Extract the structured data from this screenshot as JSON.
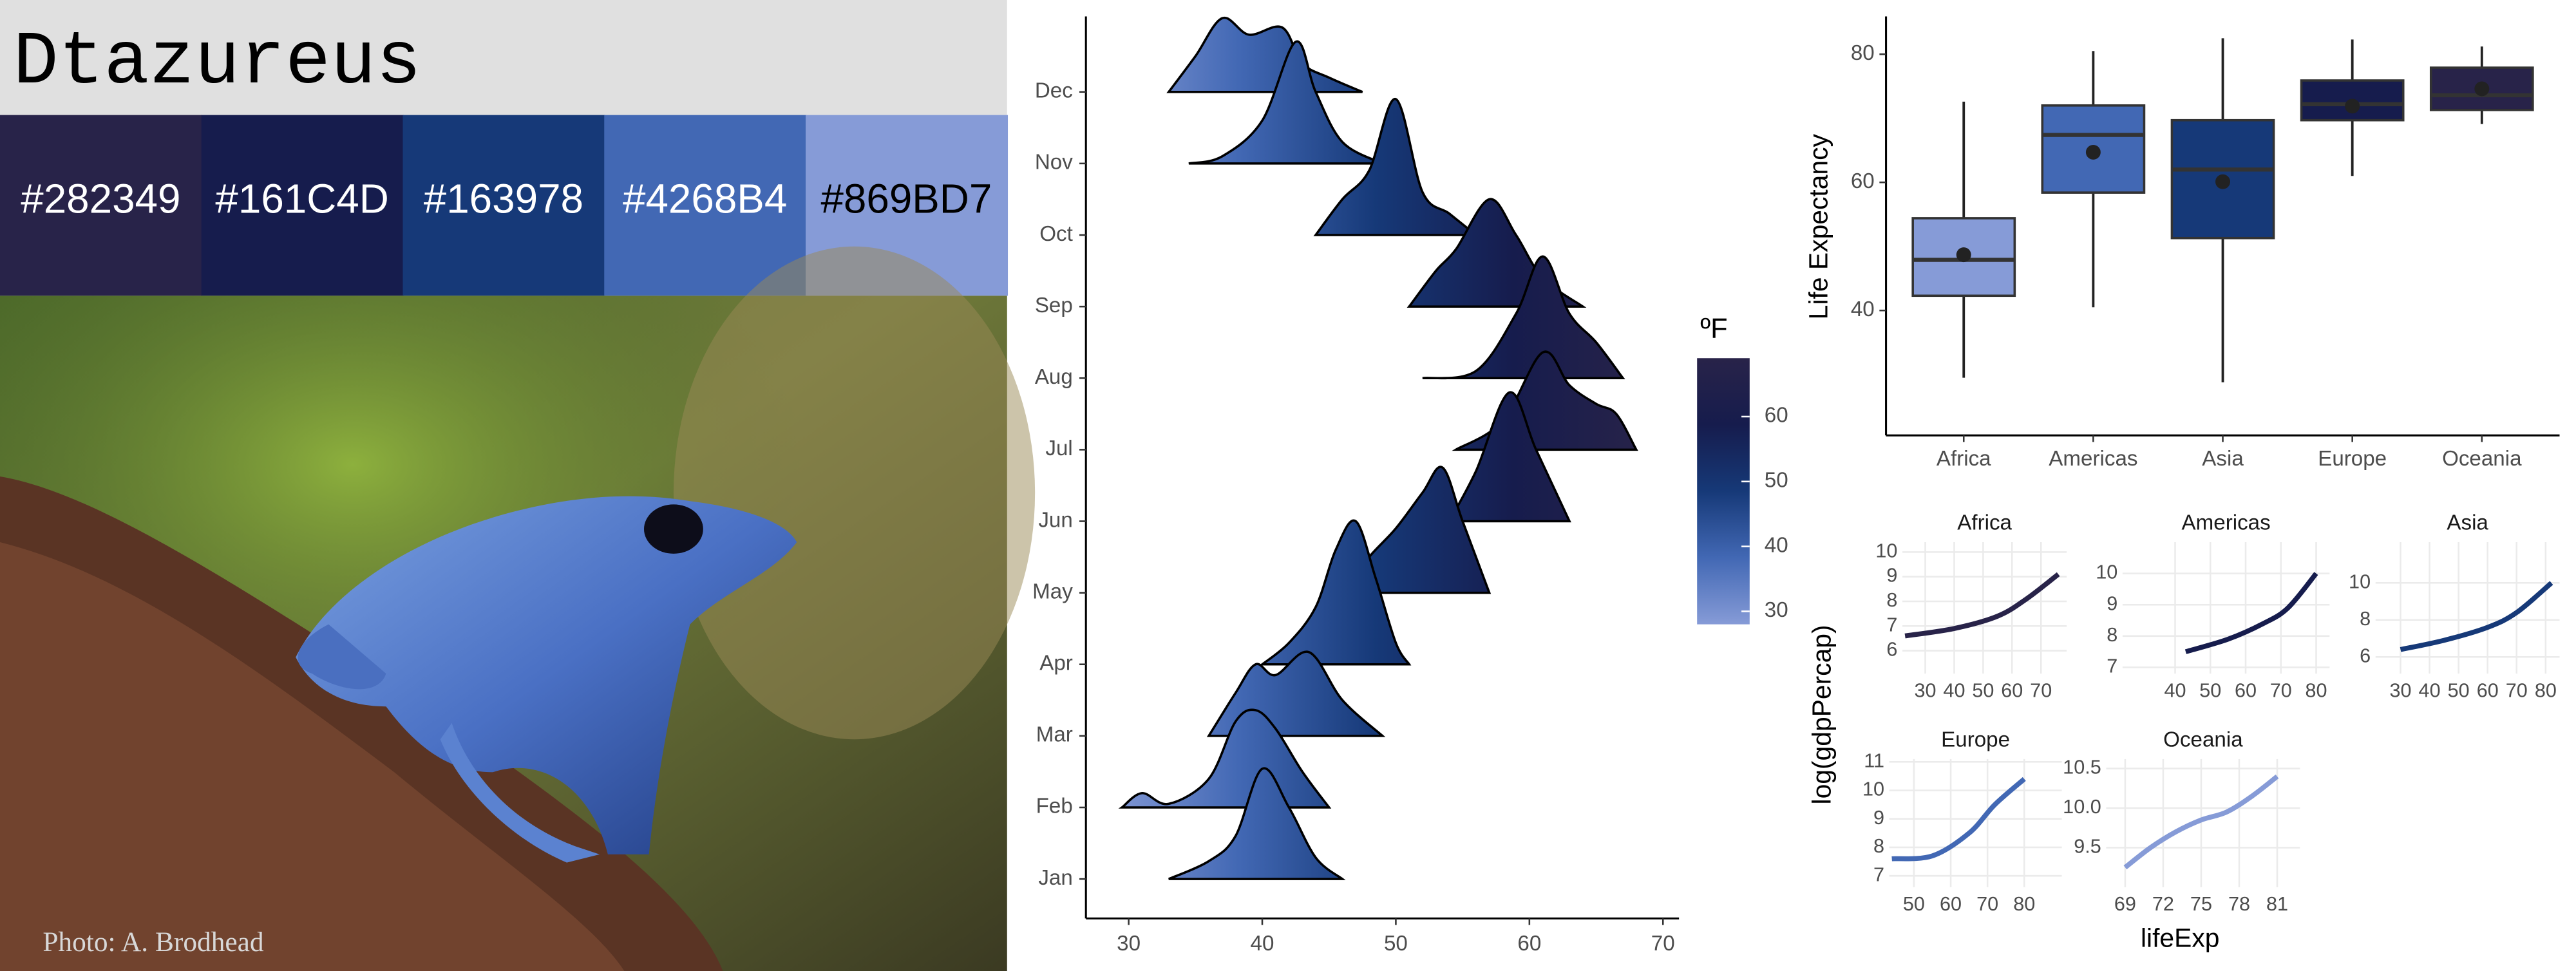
{
  "palette": {
    "title": "Dtazureus",
    "colors": [
      "#282349",
      "#161C4D",
      "#163978",
      "#4268B4",
      "#869BD7"
    ]
  },
  "photo_credit": "Photo: A. Brodhead",
  "facet_labels": {
    "x": "lifeExp",
    "y": "log(gdpPercap)"
  },
  "chart_data": [
    {
      "type": "ridgeline",
      "categories": [
        "Jan",
        "Feb",
        "Mar",
        "Apr",
        "May",
        "Jun",
        "Jul",
        "Aug",
        "Sep",
        "Oct",
        "Nov",
        "Dec"
      ],
      "ridges": [
        {
          "x": [
            33,
            36,
            38,
            40,
            42,
            44,
            46
          ],
          "values": [
            0,
            0.25,
            0.6,
            1.54,
            1.0,
            0.3,
            0
          ]
        },
        {
          "x": [
            29.5,
            31,
            33,
            36,
            38,
            39.5,
            41,
            43,
            45
          ],
          "values": [
            0,
            0.2,
            0.05,
            0.4,
            1.2,
            1.36,
            1.1,
            0.5,
            0
          ]
        },
        {
          "x": [
            36,
            38,
            39.5,
            41,
            43.5,
            46,
            49
          ],
          "values": [
            0,
            0.6,
            1.0,
            0.85,
            1.17,
            0.5,
            0
          ]
        },
        {
          "x": [
            40,
            42,
            44,
            45.5,
            47,
            48.5,
            50,
            51
          ],
          "values": [
            0,
            0.3,
            0.8,
            1.6,
            2.0,
            1.2,
            0.3,
            0
          ]
        },
        {
          "x": [
            46,
            48,
            50,
            52,
            53.5,
            55,
            57
          ],
          "values": [
            0,
            0.5,
            0.9,
            1.4,
            1.75,
            1.0,
            0
          ]
        },
        {
          "x": [
            54,
            56,
            58.5,
            60.5,
            63
          ],
          "values": [
            0,
            0.7,
            1.8,
            1.0,
            0
          ]
        },
        {
          "x": [
            54.5,
            58,
            61,
            63,
            65,
            66.5,
            68
          ],
          "values": [
            0,
            0.4,
            1.36,
            0.9,
            0.64,
            0.5,
            0
          ]
        },
        {
          "x": [
            52,
            56,
            59,
            61,
            63,
            65,
            67
          ],
          "values": [
            0,
            0.1,
            0.9,
            1.7,
            0.9,
            0.5,
            0
          ]
        },
        {
          "x": [
            51,
            53,
            54.5,
            57,
            59,
            61,
            64
          ],
          "values": [
            0,
            0.5,
            0.8,
            1.5,
            1.0,
            0.4,
            0
          ]
        },
        {
          "x": [
            44,
            46,
            48,
            50,
            52,
            54,
            56
          ],
          "values": [
            0,
            0.5,
            0.9,
            1.9,
            0.6,
            0.3,
            0
          ]
        },
        {
          "x": [
            34.5,
            37,
            40,
            42.5,
            44,
            46,
            49
          ],
          "values": [
            0,
            0.1,
            0.6,
            1.7,
            1.0,
            0.3,
            0
          ]
        },
        {
          "x": [
            33,
            35,
            37,
            39,
            41.5,
            43,
            45,
            47.5
          ],
          "values": [
            0,
            0.5,
            1.03,
            0.8,
            0.9,
            0.4,
            0.2,
            0
          ]
        }
      ],
      "xlim": [
        26.8,
        71.2
      ],
      "xticks": [
        30,
        40,
        50,
        60,
        70
      ],
      "colorbar": {
        "title": "ºF",
        "lim": [
          28,
          69
        ],
        "ticks": [
          30,
          40,
          50,
          60
        ],
        "colors": [
          "#869BD7",
          "#4268B4",
          "#163978",
          "#161C4D",
          "#282349"
        ]
      }
    },
    {
      "type": "box",
      "ylabel": "Life Expectancy",
      "categories": [
        "Africa",
        "Americas",
        "Asia",
        "Europe",
        "Oceania"
      ],
      "boxes": [
        {
          "min": 29.5,
          "q1": 42.3,
          "median": 47.9,
          "q3": 54.4,
          "max": 72.6,
          "mean": 48.7
        },
        {
          "min": 40.5,
          "q1": 58.4,
          "median": 67.4,
          "q3": 72.0,
          "max": 80.5,
          "mean": 64.7
        },
        {
          "min": 28.8,
          "q1": 51.3,
          "median": 62.0,
          "q3": 69.7,
          "max": 82.5,
          "mean": 60.1
        },
        {
          "min": 61.0,
          "q1": 69.7,
          "median": 72.2,
          "q3": 75.9,
          "max": 82.3,
          "mean": 71.9
        },
        {
          "min": 69.1,
          "q1": 71.3,
          "median": 73.6,
          "q3": 77.9,
          "max": 81.2,
          "mean": 74.6
        }
      ],
      "colors": [
        "#869BD7",
        "#4268B4",
        "#163978",
        "#161C4D",
        "#282349"
      ],
      "ylim": [
        20.5,
        85.9
      ],
      "yticks": [
        40,
        60,
        80
      ]
    },
    {
      "type": "line",
      "title": "Africa",
      "x": [
        23,
        40,
        55,
        65,
        76
      ],
      "values": [
        6.6,
        6.9,
        7.4,
        8.1,
        9.1
      ],
      "color": "#282349",
      "xlim": [
        22.1,
        78.9
      ],
      "ylim": [
        5.07,
        10.4
      ],
      "xticks": [
        30,
        40,
        50,
        60,
        70
      ],
      "yticks": [
        6,
        7,
        8,
        9,
        10
      ]
    },
    {
      "type": "line",
      "title": "Americas",
      "x": [
        43,
        55,
        65,
        72,
        80
      ],
      "values": [
        7.5,
        7.9,
        8.4,
        8.9,
        10.0
      ],
      "color": "#161C4D",
      "xlim": [
        25.1,
        83.8
      ],
      "ylim": [
        6.8,
        11.0
      ],
      "xticks": [
        40,
        50,
        60,
        70,
        80
      ],
      "yticks": [
        7,
        8,
        9,
        10
      ]
    },
    {
      "type": "line",
      "title": "Asia",
      "x": [
        30,
        45,
        60,
        70,
        82
      ],
      "values": [
        6.4,
        6.9,
        7.6,
        8.4,
        10.0
      ],
      "color": "#163978",
      "xlim": [
        21.4,
        84.8
      ],
      "ylim": [
        5.1,
        12.2
      ],
      "xticks": [
        30,
        40,
        50,
        60,
        70,
        80
      ],
      "yticks": [
        6,
        8,
        10
      ]
    },
    {
      "type": "line",
      "title": "Europe",
      "x": [
        44,
        55,
        65,
        72,
        80
      ],
      "values": [
        7.6,
        7.7,
        8.5,
        9.5,
        10.4
      ],
      "color": "#4268B4",
      "xlim": [
        43.3,
        90.2
      ],
      "ylim": [
        6.6,
        11.1
      ],
      "xticks": [
        50,
        60,
        70,
        80
      ],
      "yticks": [
        7,
        8,
        9,
        10,
        11
      ]
    },
    {
      "type": "line",
      "title": "Oceania",
      "x": [
        69,
        71,
        73,
        75,
        77,
        79,
        81
      ],
      "values": [
        9.25,
        9.5,
        9.7,
        9.85,
        9.95,
        10.15,
        10.4
      ],
      "color": "#869BD7",
      "xlim": [
        67.5,
        82.8
      ],
      "ylim": [
        9.0,
        10.62
      ],
      "xticks": [
        69,
        72,
        75,
        78,
        81
      ],
      "yticks": [
        9.5,
        {
          "value": 10,
          "label": "10.0"
        },
        10.5
      ]
    }
  ]
}
